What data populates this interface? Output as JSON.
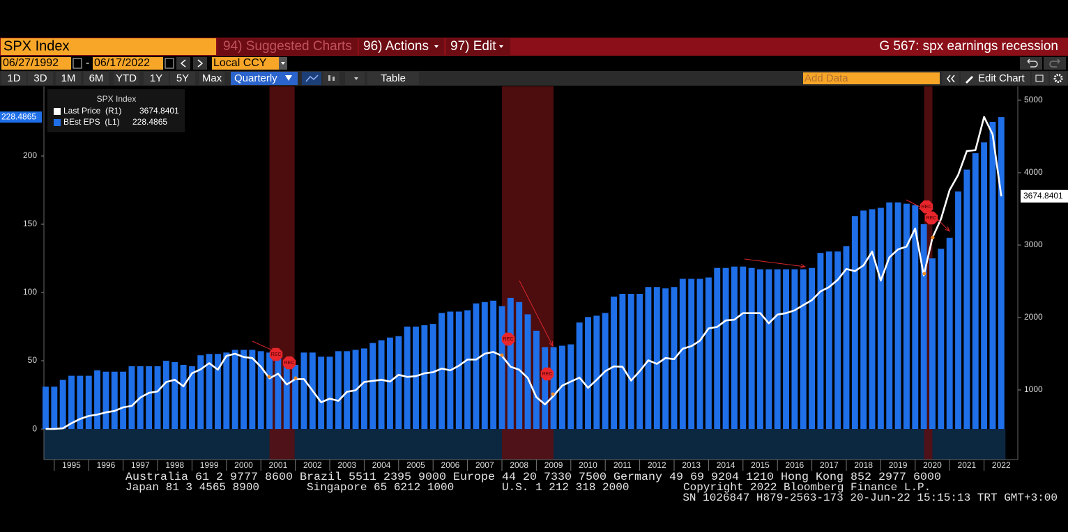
{
  "header": {
    "security": "SPX Index",
    "menus": [
      "94) Suggested Charts",
      "96) Actions",
      "97) Edit"
    ],
    "page_title": "G 567: spx earnings recession"
  },
  "date_range": {
    "start": "06/27/1992",
    "separator": "-",
    "end": "06/17/2022",
    "currency": "Local CCY"
  },
  "toolbar": {
    "periods": [
      "1D",
      "3D",
      "1M",
      "6M",
      "YTD",
      "1Y",
      "5Y",
      "Max"
    ],
    "frequency": "Quarterly",
    "table": "Table",
    "add_data": "Add Data",
    "edit_chart": "Edit Chart"
  },
  "footer": {
    "line1": "Australia 61 2 9777 8600 Brazil 5511 2395 9000 Europe 44 20 7330 7500 Germany 49 69 9204 1210 Hong Kong 852 2977 6000",
    "japan": "Japan 81 3 4565 8900",
    "singapore": "Singapore 65 6212 1000",
    "us": "U.S. 1 212 318 2000",
    "copyright": "Copyright 2022 Bloomberg Finance L.P.",
    "session": "SN 1026847 H879-2563-173 20-Jun-22 15:15:13 TRT  GMT+3:00"
  },
  "chart_data": {
    "type": "bar",
    "legend_title": "SPX Index",
    "x": [
      1994.75,
      1995,
      1995.25,
      1995.5,
      1995.75,
      1996,
      1996.25,
      1996.5,
      1996.75,
      1997,
      1997.25,
      1997.5,
      1997.75,
      1998,
      1998.25,
      1998.5,
      1998.75,
      1999,
      1999.25,
      1999.5,
      1999.75,
      2000,
      2000.25,
      2000.5,
      2000.75,
      2001,
      2001.25,
      2001.5,
      2001.75,
      2002,
      2002.25,
      2002.5,
      2002.75,
      2003,
      2003.25,
      2003.5,
      2003.75,
      2004,
      2004.25,
      2004.5,
      2004.75,
      2005,
      2005.25,
      2005.5,
      2005.75,
      2006,
      2006.25,
      2006.5,
      2006.75,
      2007,
      2007.25,
      2007.5,
      2007.75,
      2008,
      2008.25,
      2008.5,
      2008.75,
      2009,
      2009.25,
      2009.5,
      2009.75,
      2010,
      2010.25,
      2010.5,
      2010.75,
      2011,
      2011.25,
      2011.5,
      2011.75,
      2012,
      2012.25,
      2012.5,
      2012.75,
      2013,
      2013.25,
      2013.5,
      2013.75,
      2014,
      2014.25,
      2014.5,
      2014.75,
      2015,
      2015.25,
      2015.5,
      2015.75,
      2016,
      2016.25,
      2016.5,
      2016.75,
      2017,
      2017.25,
      2017.5,
      2017.75,
      2018,
      2018.25,
      2018.5,
      2018.75,
      2019,
      2019.25,
      2019.5,
      2019.75,
      2020,
      2020.25,
      2020.5,
      2020.75,
      2021,
      2021.25,
      2021.5,
      2021.75,
      2022,
      2022.25,
      2022.5
    ],
    "series": [
      {
        "name": "Last Price  (R1)",
        "type": "line",
        "axis": "y2",
        "color": "#ffffff",
        "values": [
          462,
          462,
          470,
          540,
          600,
          640,
          660,
          690,
          710,
          760,
          780,
          895,
          960,
          980,
          1110,
          1140,
          1050,
          1230,
          1285,
          1370,
          1280,
          1470,
          1500,
          1455,
          1440,
          1320,
          1160,
          1225,
          1075,
          1150,
          1150,
          990,
          830,
          880,
          850,
          975,
          995,
          1110,
          1125,
          1140,
          1115,
          1210,
          1180,
          1190,
          1230,
          1245,
          1295,
          1270,
          1335,
          1420,
          1420,
          1500,
          1525,
          1470,
          1320,
          1280,
          1165,
          900,
          800,
          920,
          1060,
          1115,
          1170,
          1030,
          1140,
          1260,
          1325,
          1320,
          1130,
          1260,
          1410,
          1360,
          1440,
          1425,
          1570,
          1605,
          1680,
          1850,
          1870,
          1960,
          1970,
          2060,
          2060,
          2060,
          1920,
          2040,
          2060,
          2100,
          2170,
          2240,
          2360,
          2420,
          2520,
          2670,
          2640,
          2720,
          2910,
          2510,
          2830,
          2940,
          2980,
          3230,
          2580,
          3100,
          3360,
          3760,
          3970,
          4300,
          4310,
          4770,
          4530,
          3674.8401
        ]
      },
      {
        "name": "BEst EPS  (L1)",
        "type": "bar",
        "axis": "y",
        "color": "#1f6fe8",
        "values": [
          31,
          31,
          36,
          39,
          39,
          39,
          43,
          42,
          42,
          42,
          46,
          46,
          46,
          46,
          50,
          49,
          47,
          46,
          54,
          55,
          55,
          56,
          58,
          58,
          58,
          57,
          56,
          53,
          49,
          47,
          56,
          56,
          53,
          53,
          57,
          57,
          58,
          59,
          63,
          65,
          67,
          68,
          75,
          75,
          76,
          77,
          85,
          86,
          86,
          87,
          92,
          93,
          94,
          90,
          96,
          93,
          84,
          72,
          60,
          60,
          61,
          62,
          78,
          82,
          83,
          85,
          97,
          99,
          99,
          99,
          104,
          104,
          103,
          104,
          110,
          110,
          110,
          111,
          118,
          118,
          119,
          119,
          118,
          117,
          117,
          117,
          117,
          117,
          117,
          118,
          129,
          130,
          130,
          134,
          156,
          160,
          161,
          162,
          166,
          166,
          165,
          164,
          150,
          125,
          132,
          140,
          174,
          190,
          202,
          210,
          225,
          228.4865
        ]
      }
    ],
    "recessions": [
      [
        2001.25,
        2001.98
      ],
      [
        2008.0,
        2009.5
      ],
      [
        2020.26,
        2020.5
      ]
    ],
    "annotations": [
      "REC",
      "REC",
      "REC",
      "REC",
      "REC",
      "REC"
    ],
    "xlim": [
      1994.7,
      2022.98
    ],
    "xticks": [
      1995,
      1996,
      1997,
      1998,
      1999,
      2000,
      2001,
      2002,
      2003,
      2004,
      2005,
      2006,
      2007,
      2008,
      2009,
      2010,
      2011,
      2012,
      2013,
      2014,
      2015,
      2016,
      2017,
      2018,
      2019,
      2020,
      2021,
      2022
    ],
    "ylim": [
      -22.4,
      251
    ],
    "yticks": [
      0,
      50,
      100,
      150,
      200
    ],
    "y2lim": [
      38.5,
      5192
    ],
    "y2ticks": [
      1000,
      2000,
      3000,
      4000,
      5000
    ]
  }
}
